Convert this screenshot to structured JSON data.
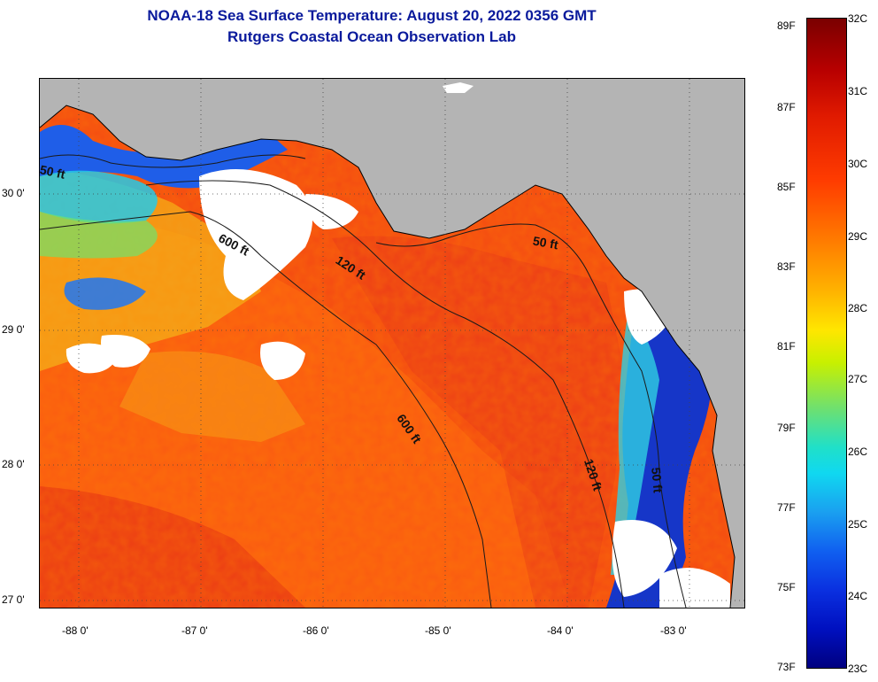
{
  "title": {
    "line1": "NOAA-18 Sea Surface Temperature:  August 20, 2022 0356 GMT",
    "line2": "Rutgers Coastal Ocean Observation Lab"
  },
  "colors": {
    "title": "#0a1a9c",
    "land": "#b4b4b4",
    "cloud": "#ffffff",
    "warm_water": "#ff4a10",
    "contour": "#1a1a1a"
  },
  "map": {
    "lat_labels": [
      "30 0'",
      "29 0'",
      "28 0'",
      "27 0'"
    ],
    "lon_labels": [
      "-88 0'",
      "-87 0'",
      "-86 0'",
      "-85 0'",
      "-84 0'",
      "-83 0'"
    ],
    "contour_labels": [
      {
        "text": "50 ft"
      },
      {
        "text": "600 ft"
      },
      {
        "text": "120 ft"
      },
      {
        "text": "50 ft"
      },
      {
        "text": "600 ft"
      },
      {
        "text": "120 ft"
      },
      {
        "text": "50 ft"
      }
    ]
  },
  "colorbar": {
    "fahrenheit_labels": [
      "89F",
      "87F",
      "85F",
      "83F",
      "81F",
      "79F",
      "77F",
      "75F",
      "73F"
    ],
    "celsius_labels": [
      "32C",
      "31C",
      "30C",
      "29C",
      "28C",
      "27C",
      "26C",
      "25C",
      "24C",
      "23C"
    ],
    "celsius_range": [
      23,
      32
    ],
    "fahrenheit_range": [
      73,
      89
    ]
  }
}
